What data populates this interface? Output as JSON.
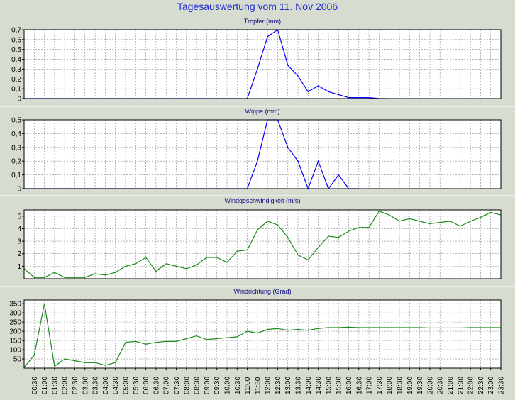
{
  "title": "Tagesauswertung vom 11. Nov 2006",
  "colors": {
    "blue": "#0000ff",
    "green": "#1a8c1a",
    "title": "#1f2bd0",
    "background": "#d7dcd0"
  },
  "time_labels": [
    "00:30",
    "01:00",
    "01:30",
    "02:00",
    "02:30",
    "03:00",
    "03:30",
    "04:00",
    "04:30",
    "05:00",
    "05:30",
    "06:00",
    "06:30",
    "07:00",
    "07:30",
    "08:00",
    "08:30",
    "09:00",
    "09:30",
    "10:00",
    "10:30",
    "11:00",
    "11:30",
    "12:00",
    "12:30",
    "13:00",
    "13:30",
    "14:00",
    "14:30",
    "15:00",
    "15:30",
    "16:00",
    "16:30",
    "17:00",
    "17:30",
    "18:00",
    "18:30",
    "19:00",
    "19:30",
    "20:00",
    "20:30",
    "21:00",
    "21:30",
    "22:00",
    "22:30",
    "23:00",
    "23:30"
  ],
  "chart_data": [
    {
      "type": "line",
      "title": "Tropfer (mm)",
      "color": "blue",
      "ylim": [
        0,
        0.7
      ],
      "yticks": [
        0,
        0.1,
        0.2,
        0.3,
        0.4,
        0.5,
        0.6,
        0.7
      ],
      "ytick_labels": [
        "0",
        "0,1",
        "0,2",
        "0,3",
        "0,4",
        "0,5",
        "0,6",
        "0,7"
      ],
      "grid": true,
      "x": [
        0,
        0.5,
        1,
        1.5,
        2,
        2.5,
        3,
        3.5,
        4,
        4.5,
        5,
        5.5,
        6,
        6.5,
        7,
        7.5,
        8,
        8.5,
        9,
        9.5,
        10,
        10.5,
        11,
        11.5,
        12,
        12.5,
        13,
        13.5,
        14,
        14.5,
        15,
        15.5,
        16,
        16.5,
        17,
        17.5,
        18
      ],
      "values": [
        0,
        0,
        0,
        0,
        0,
        0,
        0,
        0,
        0,
        0,
        0,
        0,
        0,
        0,
        0,
        0,
        0,
        0,
        0,
        0,
        0,
        0,
        0,
        0.3,
        0.63,
        0.7,
        0.34,
        0.23,
        0.07,
        0.13,
        0.07,
        0.04,
        0.01,
        0.01,
        0.01,
        0,
        0
      ]
    },
    {
      "type": "line",
      "title": "Wippe (mm)",
      "color": "blue",
      "ylim": [
        0,
        0.5
      ],
      "yticks": [
        0,
        0.1,
        0.2,
        0.3,
        0.4,
        0.5
      ],
      "ytick_labels": [
        "0",
        "0,1",
        "0,2",
        "0,3",
        "0,4",
        "0,5"
      ],
      "grid": true,
      "x": [
        0,
        0.5,
        1,
        1.5,
        2,
        2.5,
        3,
        3.5,
        4,
        4.5,
        5,
        5.5,
        6,
        6.5,
        7,
        7.5,
        8,
        8.5,
        9,
        9.5,
        10,
        10.5,
        11,
        11.5,
        12,
        12.5,
        13,
        13.5,
        14,
        14.5,
        15,
        15.5,
        16,
        16.5
      ],
      "values": [
        0,
        0,
        0,
        0,
        0,
        0,
        0,
        0,
        0,
        0,
        0,
        0,
        0,
        0,
        0,
        0,
        0,
        0,
        0,
        0,
        0,
        0,
        0,
        0.2,
        0.5,
        0.5,
        0.3,
        0.2,
        0,
        0.2,
        0,
        0.1,
        0,
        0
      ]
    },
    {
      "type": "line",
      "title": "Windgeschwindigkeit (m/s)",
      "color": "green",
      "ylim": [
        0,
        5.5
      ],
      "yticks": [
        1,
        2,
        3,
        4,
        5
      ],
      "ytick_labels": [
        "1",
        "2",
        "3",
        "4",
        "5"
      ],
      "grid": true,
      "x": [
        0,
        0.5,
        1,
        1.5,
        2,
        2.5,
        3,
        3.5,
        4,
        4.5,
        5,
        5.5,
        6,
        6.5,
        7,
        7.5,
        8,
        8.5,
        9,
        9.5,
        10,
        10.5,
        11,
        11.5,
        12,
        12.5,
        13,
        13.5,
        14,
        14.5,
        15,
        15.5,
        16,
        16.5,
        17,
        17.5,
        18,
        18.5,
        19,
        19.5,
        20,
        20.5,
        21,
        21.5,
        22,
        22.5,
        23,
        23.5
      ],
      "values": [
        0.8,
        0.1,
        0.1,
        0.5,
        0.1,
        0.1,
        0.1,
        0.4,
        0.3,
        0.5,
        1.0,
        1.2,
        1.7,
        0.6,
        1.2,
        1.0,
        0.8,
        1.1,
        1.7,
        1.7,
        1.3,
        2.2,
        2.3,
        3.9,
        4.6,
        4.3,
        3.3,
        1.9,
        1.5,
        2.5,
        3.4,
        3.3,
        3.8,
        4.1,
        4.1,
        5.4,
        5.1,
        4.6,
        4.8,
        4.6,
        4.4,
        4.5,
        4.6,
        4.2,
        4.6,
        4.9,
        5.3,
        5.1
      ]
    },
    {
      "type": "line",
      "title": "Windrichtung (Grad)",
      "color": "green",
      "ylim": [
        0,
        370
      ],
      "yticks": [
        50,
        100,
        150,
        200,
        250,
        300,
        350
      ],
      "ytick_labels": [
        "50",
        "100",
        "150",
        "200",
        "250",
        "300",
        "350"
      ],
      "grid": true,
      "x": [
        0,
        0.5,
        1,
        1.5,
        2,
        2.5,
        3,
        3.5,
        4,
        4.5,
        5,
        5.5,
        6,
        6.5,
        7,
        7.5,
        8,
        8.5,
        9,
        9.5,
        10,
        10.5,
        11,
        11.5,
        12,
        12.5,
        13,
        13.5,
        14,
        14.5,
        15,
        15.5,
        16,
        16.5,
        17,
        17.5,
        18,
        18.5,
        19,
        19.5,
        20,
        20.5,
        21,
        21.5,
        22,
        22.5,
        23,
        23.5
      ],
      "values": [
        5,
        70,
        350,
        10,
        50,
        40,
        30,
        30,
        15,
        30,
        140,
        145,
        130,
        140,
        145,
        145,
        160,
        175,
        155,
        160,
        165,
        170,
        200,
        190,
        210,
        215,
        205,
        210,
        205,
        215,
        220,
        220,
        222,
        220,
        220,
        220,
        220,
        220,
        220,
        220,
        218,
        218,
        218,
        218,
        220,
        220,
        220,
        220
      ]
    }
  ]
}
